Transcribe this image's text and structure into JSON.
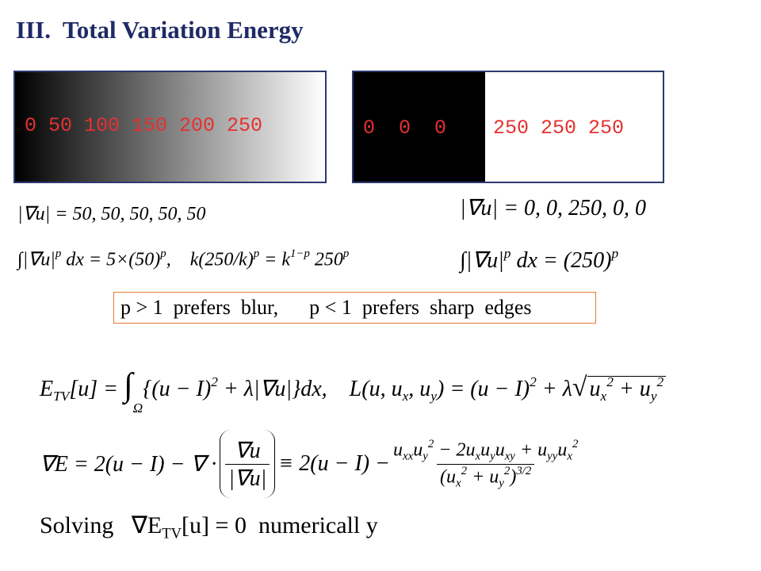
{
  "title": {
    "number": "III.",
    "text": "Total Variation Energy"
  },
  "images": {
    "ramp_label": "0 50 100 150 200 250",
    "step_dark_label": "0  0  0",
    "step_bright_label": "250 250 250"
  },
  "formulas": {
    "grad_left": [
      "|∇u| = 50, 50, 50, 50, 50"
    ],
    "integral_left": [
      "∫|∇u|",
      "p",
      " dx = 5×(50)",
      "p",
      ",    k(250/k)",
      "p",
      " = k",
      "1−p",
      " 250",
      "p"
    ],
    "grad_right": [
      "|∇u| = 0, 0, 250, 0, 0"
    ],
    "integral_right": [
      "∫|∇u|",
      "p",
      " dx = (250)",
      "p"
    ],
    "boxed": "p > 1  prefers  blur,      p < 1  prefers  sharp  edges",
    "energy": [
      "E",
      "TV",
      "[u] = ",
      "∫",
      "Ω",
      "{(u − I)",
      "2",
      " + λ|∇u|}dx,    L(u, u",
      "x",
      ", u",
      "y",
      ") = (u − I)",
      "2",
      " + λ",
      "√",
      "u",
      "x",
      "2",
      " + u",
      "y",
      "2"
    ],
    "gradient": {
      "left": "∇E = 2(u − I) − ∇ ·",
      "frac_num": "∇u",
      "frac_den": "|∇u|",
      "middle": "≡ 2(u − I) −",
      "numerator": [
        "u",
        "xx",
        "u",
        "y",
        "2",
        " − 2u",
        "x",
        "u",
        "y",
        "u",
        "xy",
        " + u",
        "yy",
        "u",
        "x",
        "2"
      ],
      "denominator": [
        "(u",
        "x",
        "2",
        " + u",
        "y",
        "2",
        ")",
        "3/2"
      ]
    },
    "solving": [
      "Solving   ∇E",
      "TV",
      "[u] = 0  numericall y"
    ]
  }
}
